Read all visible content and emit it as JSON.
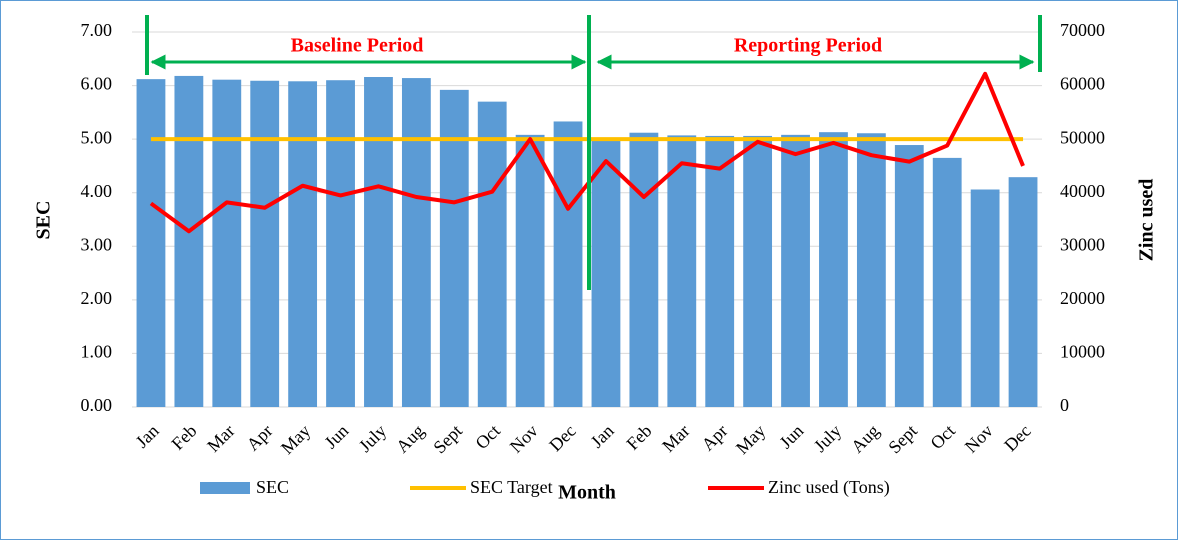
{
  "chart_data": {
    "type": "bar_line",
    "x_label": "Month",
    "y_label": "SEC",
    "y2_label": "Zinc used",
    "annotations": [
      "Baseline Period",
      "Reporting Period"
    ],
    "categories": [
      "Jan",
      "Feb",
      "Mar",
      "Apr",
      "May",
      "Jun",
      "July",
      "Aug",
      "Sept",
      "Oct",
      "Nov",
      "Dec",
      "Jan",
      "Feb",
      "Mar",
      "Apr",
      "May",
      "Jun",
      "July",
      "Aug",
      "Sept",
      "Oct",
      "Nov",
      "Dec"
    ],
    "series": [
      {
        "name": "SEC",
        "type": "bar",
        "color": "#5b9bd5",
        "values": [
          6.12,
          6.18,
          6.11,
          6.09,
          6.08,
          6.1,
          6.16,
          6.14,
          5.92,
          5.7,
          5.08,
          5.33,
          4.98,
          5.12,
          5.07,
          5.06,
          5.06,
          5.08,
          5.13,
          5.11,
          4.89,
          4.65,
          4.06,
          4.29
        ]
      },
      {
        "name": "SEC Target",
        "type": "line",
        "color": "#ffc000",
        "values": [
          5,
          5,
          5,
          5,
          5,
          5,
          5,
          5,
          5,
          5,
          5,
          5,
          5,
          5,
          5,
          5,
          5,
          5,
          5,
          5,
          5,
          5,
          5,
          5
        ]
      },
      {
        "name": "Zinc used (Tons)",
        "type": "line",
        "axis": "y2",
        "color": "#ff0000",
        "values": [
          38000,
          32800,
          38200,
          37200,
          41300,
          39500,
          41200,
          39200,
          38200,
          40200,
          50000,
          37000,
          45900,
          39200,
          45500,
          44500,
          49500,
          47200,
          49300,
          47000,
          45800,
          48800,
          62200,
          45000
        ]
      }
    ],
    "ylim": [
      0,
      7
    ],
    "yticks": [
      {
        "value": 0,
        "label": "0.00"
      },
      {
        "value": 1,
        "label": "1.00"
      },
      {
        "value": 2,
        "label": "2.00"
      },
      {
        "value": 3,
        "label": "3.00"
      },
      {
        "value": 4,
        "label": "4.00"
      },
      {
        "value": 5,
        "label": "5.00"
      },
      {
        "value": 6,
        "label": "6.00"
      },
      {
        "value": 7,
        "label": "7.00"
      }
    ],
    "y2lim": [
      0,
      70000
    ],
    "y2ticks": [
      0,
      10000,
      20000,
      30000,
      40000,
      50000,
      60000,
      70000
    ],
    "legend": "bottom"
  }
}
